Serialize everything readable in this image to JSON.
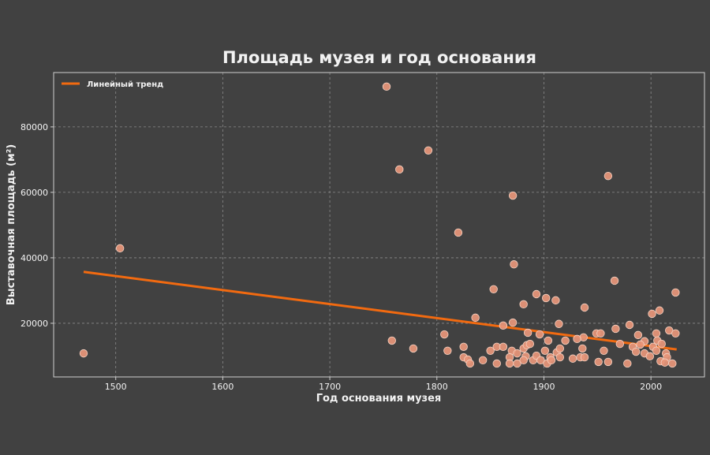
{
  "chart_data": {
    "type": "scatter",
    "title": "Площадь музея и год основания",
    "xlabel": "Год основания музея",
    "ylabel": "Выставочная площадь (м²)",
    "xlim": [
      1442,
      2050
    ],
    "ylim": [
      3600,
      96600
    ],
    "xticks": [
      1500,
      1600,
      1700,
      1800,
      1900,
      2000
    ],
    "yticks": [
      20000,
      40000,
      60000,
      80000
    ],
    "grid": true,
    "legend": {
      "position": "top-left",
      "entries": [
        "Линейный тренд"
      ]
    },
    "colors": {
      "points": "#e8967a",
      "point_edge": "#f6d2c2",
      "trend": "#f26a10",
      "background": "#414141",
      "grid": "#8a8a8a"
    },
    "trend": {
      "name": "Линейный тренд",
      "x": [
        1470,
        2024
      ],
      "y": [
        35700,
        12000
      ]
    },
    "points": [
      [
        1470,
        10800
      ],
      [
        1504,
        42900
      ],
      [
        1753,
        92300
      ],
      [
        1765,
        67000
      ],
      [
        1792,
        72800
      ],
      [
        1820,
        47700
      ],
      [
        1871,
        59000
      ],
      [
        1960,
        65000
      ],
      [
        1872,
        38000
      ],
      [
        1966,
        33000
      ],
      [
        1853,
        30400
      ],
      [
        1758,
        14700
      ],
      [
        1778,
        12300
      ],
      [
        1836,
        21700
      ],
      [
        1893,
        28900
      ],
      [
        1902,
        27700
      ],
      [
        1911,
        27000
      ],
      [
        1881,
        25800
      ],
      [
        1871,
        20200
      ],
      [
        1862,
        19300
      ],
      [
        1914,
        19800
      ],
      [
        1885,
        17100
      ],
      [
        1896,
        16600
      ],
      [
        1807,
        16600
      ],
      [
        1904,
        14700
      ],
      [
        1920,
        14700
      ],
      [
        1810,
        11600
      ],
      [
        1825,
        12800
      ],
      [
        1825,
        9600
      ],
      [
        1829,
        8900
      ],
      [
        1831,
        7700
      ],
      [
        1843,
        8700
      ],
      [
        1850,
        11600
      ],
      [
        1856,
        12800
      ],
      [
        1862,
        12800
      ],
      [
        1856,
        7700
      ],
      [
        1870,
        11600
      ],
      [
        1868,
        9600
      ],
      [
        1868,
        7700
      ],
      [
        1875,
        10800
      ],
      [
        1875,
        7700
      ],
      [
        1881,
        12300
      ],
      [
        1884,
        13300
      ],
      [
        1887,
        13700
      ],
      [
        1883,
        9900
      ],
      [
        1881,
        8700
      ],
      [
        1890,
        8700
      ],
      [
        1893,
        10100
      ],
      [
        1897,
        8700
      ],
      [
        1901,
        11600
      ],
      [
        1906,
        9600
      ],
      [
        1903,
        7700
      ],
      [
        1907,
        8700
      ],
      [
        1912,
        11100
      ],
      [
        1915,
        12300
      ],
      [
        1915,
        9600
      ],
      [
        1927,
        9200
      ],
      [
        2023,
        29400
      ],
      [
        1938,
        24800
      ],
      [
        2001,
        22900
      ],
      [
        2008,
        23900
      ],
      [
        1980,
        19500
      ],
      [
        1967,
        18300
      ],
      [
        1949,
        16900
      ],
      [
        1953,
        16900
      ],
      [
        2005,
        16900
      ],
      [
        1988,
        16400
      ],
      [
        2017,
        17800
      ],
      [
        2023,
        16900
      ],
      [
        1937,
        15700
      ],
      [
        1931,
        15200
      ],
      [
        1971,
        13700
      ],
      [
        1983,
        12800
      ],
      [
        1994,
        14500
      ],
      [
        1990,
        13500
      ],
      [
        2006,
        14700
      ],
      [
        2010,
        13700
      ],
      [
        2002,
        12800
      ],
      [
        1986,
        11300
      ],
      [
        2005,
        11600
      ],
      [
        1956,
        11600
      ],
      [
        1936,
        12300
      ],
      [
        1934,
        9600
      ],
      [
        1938,
        9600
      ],
      [
        1994,
        10800
      ],
      [
        1999,
        9900
      ],
      [
        2014,
        10800
      ],
      [
        2015,
        9600
      ],
      [
        2009,
        8400
      ],
      [
        2013,
        8000
      ],
      [
        2020,
        7700
      ],
      [
        1951,
        8200
      ],
      [
        1960,
        8200
      ],
      [
        1978,
        7700
      ]
    ]
  }
}
